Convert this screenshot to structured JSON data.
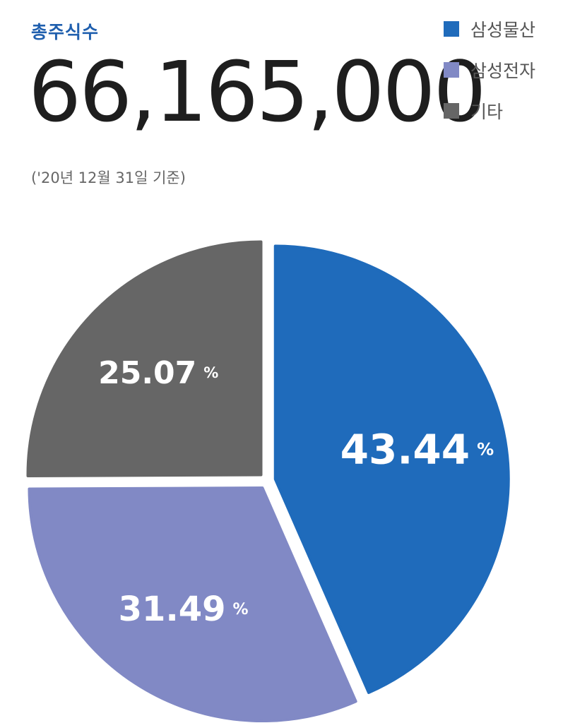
{
  "header": {
    "label": "총주식수",
    "total": "66,165,000",
    "date_note": "('20년 12월 31일 기준)"
  },
  "legend": [
    {
      "label": "삼성물산",
      "color": "#1f6bbb"
    },
    {
      "label": "삼성전자",
      "color": "#8189c5"
    },
    {
      "label": "기타",
      "color": "#666666"
    }
  ],
  "chart_data": {
    "type": "pie",
    "labels": [
      "삼성물산",
      "삼성전자",
      "기타"
    ],
    "values": [
      43.44,
      31.49,
      25.07
    ],
    "value_labels": [
      "43.44",
      "31.49",
      "25.07"
    ],
    "unit": "%",
    "colors": [
      "#1f6bbb",
      "#8189c5",
      "#666666"
    ]
  }
}
